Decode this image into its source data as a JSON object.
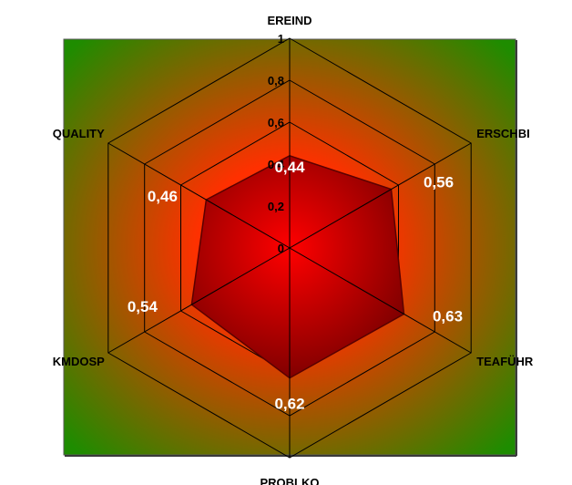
{
  "chart_data": {
    "type": "radar",
    "title": "",
    "categories": [
      "EREIND",
      "ERSCHBI",
      "TEAFÜHR",
      "PROBLKO",
      "KMDOSP",
      "QUALITY"
    ],
    "series": [
      {
        "values": [
          0.44,
          0.56,
          0.63,
          0.62,
          0.54,
          0.46
        ]
      }
    ],
    "data_labels": [
      "0,44",
      "0,56",
      "0,63",
      "0,62",
      "0,54",
      "0,46"
    ],
    "rlim": [
      0,
      1
    ],
    "ticks": [
      0,
      0.2,
      0.4,
      0.6,
      0.8,
      1
    ],
    "tick_labels": [
      "0",
      "0,2",
      "0,4",
      "0,6",
      "0,8",
      "1"
    ],
    "grid": true,
    "legend": "none",
    "colors": {
      "background_center": "#ff3000",
      "background_edge": "#1e8c00",
      "series_fill_center": "#ff0000",
      "series_fill_edge": "#7a0000",
      "data_label": "#ffffff",
      "grid_lines": "#000000"
    }
  }
}
